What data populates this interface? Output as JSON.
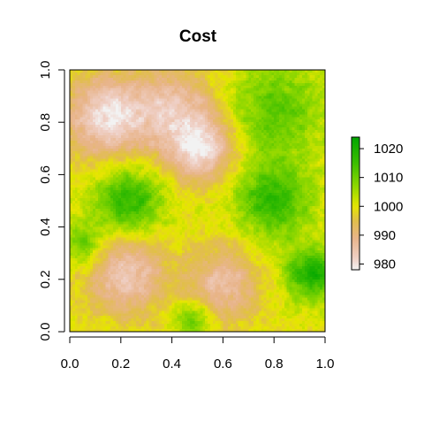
{
  "chart_data": {
    "type": "heatmap",
    "title": "Cost",
    "xlabel": "",
    "ylabel": "",
    "xlim": [
      0.0,
      1.0
    ],
    "ylim": [
      0.0,
      1.0
    ],
    "x_ticks": [
      "0.0",
      "0.2",
      "0.4",
      "0.6",
      "0.8",
      "1.0"
    ],
    "y_ticks": [
      "0.0",
      "0.2",
      "0.4",
      "0.6",
      "0.8",
      "1.0"
    ],
    "zlim": [
      978,
      1024
    ],
    "legend": {
      "placement": "right",
      "ticks": [
        {
          "value": 980,
          "label": "980"
        },
        {
          "value": 990,
          "label": "990"
        },
        {
          "value": 1000,
          "label": "1000"
        },
        {
          "value": 1010,
          "label": "1010"
        },
        {
          "value": 1020,
          "label": "1020"
        }
      ]
    },
    "colormap": "terrain (low = light pink-gray, mid = tan/yellow, high = green)",
    "color_stops": [
      {
        "value": 978,
        "color": "#f2f2f2"
      },
      {
        "value": 982,
        "color": "#efcfc5"
      },
      {
        "value": 989,
        "color": "#e8b48a"
      },
      {
        "value": 995,
        "color": "#e1be4a"
      },
      {
        "value": 1000,
        "color": "#e6e600"
      },
      {
        "value": 1007,
        "color": "#8ed700"
      },
      {
        "value": 1015,
        "color": "#3cbe00"
      },
      {
        "value": 1024,
        "color": "#00a600"
      }
    ],
    "grid_resolution": 100,
    "features": [
      {
        "x": 0.14,
        "y": 0.82,
        "value": 980,
        "spread": 0.11,
        "note": "low (pink) region upper-left"
      },
      {
        "x": 0.52,
        "y": 0.7,
        "value": 981,
        "spread": 0.09,
        "note": "low region upper-center"
      },
      {
        "x": 0.4,
        "y": 0.85,
        "value": 986,
        "spread": 0.12,
        "note": "tan ridge linking top lows"
      },
      {
        "x": 0.22,
        "y": 0.22,
        "value": 984,
        "spread": 0.11,
        "note": "low region lower-left"
      },
      {
        "x": 0.6,
        "y": 0.18,
        "value": 986,
        "spread": 0.1,
        "note": "low region lower-center"
      },
      {
        "x": 0.23,
        "y": 0.5,
        "value": 1018,
        "spread": 0.09,
        "note": "green high center-left"
      },
      {
        "x": 0.8,
        "y": 0.5,
        "value": 1017,
        "spread": 0.1,
        "note": "green high right"
      },
      {
        "x": 0.8,
        "y": 0.85,
        "value": 1012,
        "spread": 0.13,
        "note": "green high upper-right"
      },
      {
        "x": 0.95,
        "y": 0.22,
        "value": 1020,
        "spread": 0.07,
        "note": "green high lower-right"
      },
      {
        "x": 0.05,
        "y": 0.33,
        "value": 1012,
        "spread": 0.06,
        "note": "green patch left edge"
      },
      {
        "x": 0.48,
        "y": 0.05,
        "value": 1012,
        "spread": 0.05,
        "note": "green patch bottom center"
      }
    ],
    "background_value": 1000
  }
}
